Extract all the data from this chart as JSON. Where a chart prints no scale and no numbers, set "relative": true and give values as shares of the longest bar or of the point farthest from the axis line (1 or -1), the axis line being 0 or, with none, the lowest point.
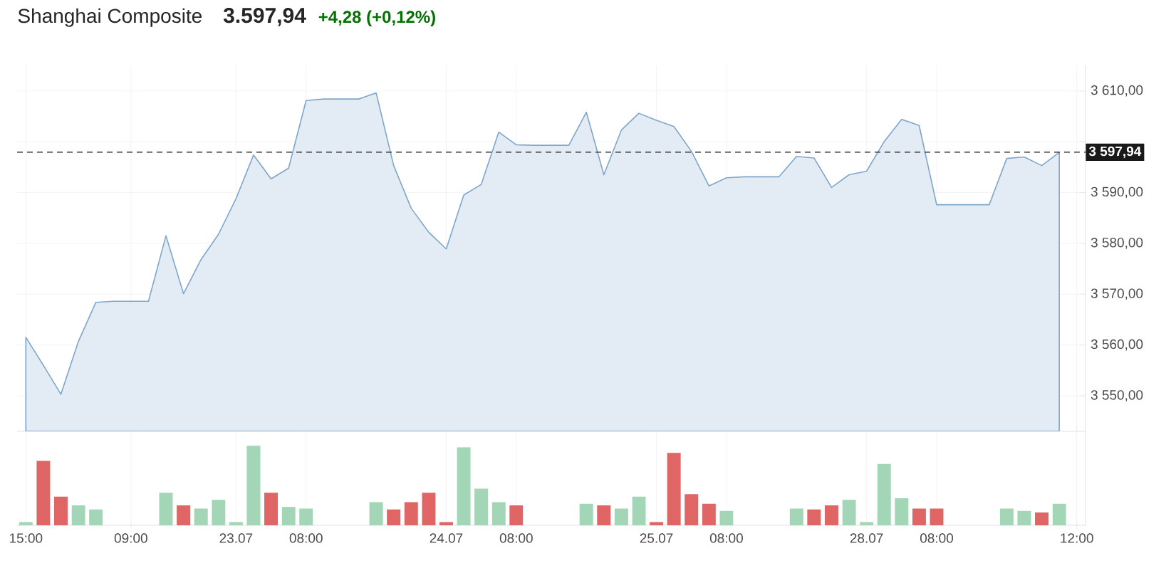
{
  "chart_data": [
    {
      "type": "area",
      "title": "Shanghai Composite",
      "annotations": [
        "3.597,94",
        "+4,28 (+0,12%)"
      ],
      "categories": [
        null,
        null,
        null,
        null,
        null,
        null,
        null,
        null,
        null,
        null,
        null,
        null,
        null,
        null,
        null,
        null,
        null,
        null,
        null,
        null,
        null,
        null,
        null,
        null,
        null,
        null,
        null,
        null,
        null,
        null,
        null,
        null,
        null,
        null,
        null,
        null,
        null,
        null,
        null,
        null,
        null,
        null,
        null,
        null,
        null,
        null,
        null,
        null,
        null,
        null,
        null,
        null,
        null,
        null,
        null,
        null,
        null,
        null,
        null,
        null,
        null
      ],
      "values": [
        3561.5,
        3556.0,
        3550.3,
        3560.7,
        3568.4,
        3568.6,
        3568.6,
        3568.6,
        3581.5,
        3570.1,
        3576.8,
        3581.8,
        3588.8,
        3597.4,
        3592.7,
        3594.8,
        3608.1,
        3608.4,
        3608.4,
        3608.4,
        3609.6,
        3595.3,
        3586.9,
        3582.2,
        3578.9,
        3589.5,
        3591.6,
        3601.9,
        3599.4,
        3599.3,
        3599.3,
        3599.3,
        3605.8,
        3593.5,
        3602.3,
        3605.6,
        3604.2,
        3603.0,
        3598.1,
        3591.3,
        3592.9,
        3593.1,
        3593.1,
        3593.1,
        3597.1,
        3596.8,
        3591.0,
        3593.5,
        3594.2,
        3600.0,
        3604.4,
        3603.2,
        3587.6,
        3587.6,
        3587.6,
        3587.6,
        3596.7,
        3597.0,
        3595.3,
        3597.9,
        null
      ],
      "color": "#e3ebf4",
      "ylim": [
        3543,
        3615
      ],
      "yticks": [
        {
          "value": 3550,
          "label": "3 550,00"
        },
        {
          "value": 3560,
          "label": "3 560,00"
        },
        {
          "value": 3570,
          "label": "3 570,00"
        },
        {
          "value": 3580,
          "label": "3 580,00"
        },
        {
          "value": 3590,
          "label": "3 590,00"
        },
        {
          "value": 3600,
          "label": null
        },
        {
          "value": 3610,
          "label": "3 610,00"
        }
      ],
      "ref_lines": [
        {
          "axis": "y",
          "value": 3597.94,
          "label": "3 597,94",
          "color": "#333333",
          "line_style": "dashed"
        }
      ],
      "grid": true,
      "tick_labels": "y"
    },
    {
      "type": "bar",
      "relative": true,
      "categories": [
        "15:00",
        null,
        null,
        null,
        null,
        null,
        "09:00",
        null,
        null,
        null,
        null,
        null,
        "23.07",
        null,
        null,
        null,
        "08:00",
        null,
        null,
        null,
        null,
        null,
        null,
        null,
        "24.07",
        null,
        null,
        null,
        "08:00",
        null,
        null,
        null,
        null,
        null,
        null,
        null,
        "25.07",
        null,
        null,
        null,
        "08:00",
        null,
        null,
        null,
        null,
        null,
        null,
        null,
        "28.07",
        null,
        null,
        null,
        "08:00",
        null,
        null,
        null,
        null,
        null,
        null,
        null,
        "12:00"
      ],
      "values": [
        0.04,
        0.81,
        0.36,
        0.25,
        0.2,
        null,
        null,
        null,
        0.41,
        0.25,
        0.21,
        0.32,
        0.04,
        1,
        0.41,
        0.23,
        0.21,
        null,
        null,
        null,
        0.29,
        0.2,
        0.29,
        0.41,
        0.04,
        0.98,
        0.46,
        0.29,
        0.25,
        null,
        null,
        null,
        0.27,
        0.25,
        0.21,
        0.36,
        0.04,
        0.91,
        0.39,
        0.27,
        0.18,
        null,
        null,
        null,
        0.21,
        0.2,
        0.25,
        0.32,
        0.04,
        0.77,
        0.34,
        0.21,
        0.21,
        null,
        null,
        null,
        0.21,
        0.18,
        0.16,
        0.27,
        null
      ],
      "colors": [
        "#a3d6b6",
        "#e06666",
        "#e06666",
        "#a3d6b6",
        "#a3d6b6",
        null,
        null,
        null,
        "#a3d6b6",
        "#e06666",
        "#a3d6b6",
        "#a3d6b6",
        "#a3d6b6",
        "#a3d6b6",
        "#e06666",
        "#a3d6b6",
        "#a3d6b6",
        null,
        null,
        null,
        "#a3d6b6",
        "#e06666",
        "#e06666",
        "#e06666",
        "#e06666",
        "#a3d6b6",
        "#a3d6b6",
        "#a3d6b6",
        "#e06666",
        null,
        null,
        null,
        "#a3d6b6",
        "#e06666",
        "#a3d6b6",
        "#a3d6b6",
        "#e06666",
        "#e06666",
        "#e06666",
        "#e06666",
        "#a3d6b6",
        null,
        null,
        null,
        "#a3d6b6",
        "#e06666",
        "#e06666",
        "#a3d6b6",
        "#a3d6b6",
        "#a3d6b6",
        "#a3d6b6",
        "#e06666",
        "#e06666",
        null,
        null,
        null,
        "#a3d6b6",
        "#a3d6b6",
        "#e06666",
        "#a3d6b6",
        null
      ],
      "grid": "x",
      "tick_labels": "x"
    }
  ]
}
